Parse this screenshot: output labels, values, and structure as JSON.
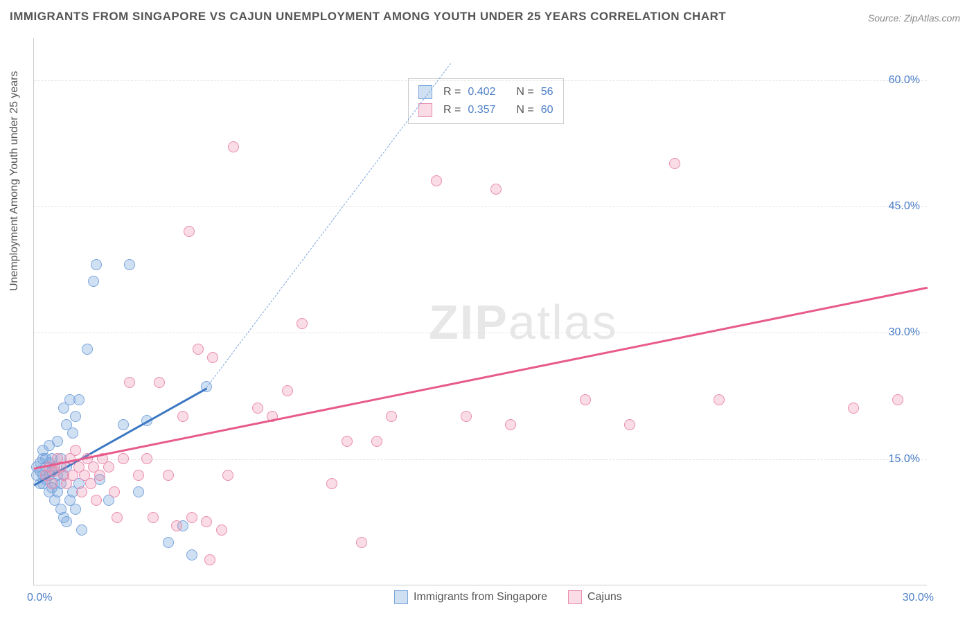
{
  "title": "IMMIGRANTS FROM SINGAPORE VS CAJUN UNEMPLOYMENT AMONG YOUTH UNDER 25 YEARS CORRELATION CHART",
  "source": "Source: ZipAtlas.com",
  "ylabel": "Unemployment Among Youth under 25 years",
  "watermark_bold": "ZIP",
  "watermark_light": "atlas",
  "chart": {
    "type": "scatter",
    "xlim": [
      0,
      30
    ],
    "ylim": [
      0,
      65
    ],
    "xtick_labels": {
      "min": "0.0%",
      "max": "30.0%"
    },
    "ytick_lines": [
      {
        "val": 15,
        "label": "15.0%"
      },
      {
        "val": 30,
        "label": "30.0%"
      },
      {
        "val": 45,
        "label": "45.0%"
      },
      {
        "val": 60,
        "label": "60.0%"
      }
    ],
    "background_color": "#ffffff",
    "grid_color": "#e3e3e3",
    "series": [
      {
        "name": "Immigrants from Singapore",
        "fill": "rgba(120,165,220,0.35)",
        "stroke": "#7aa5dc",
        "trend_color": "#3b77c2",
        "r_label": "R =",
        "r_val": "0.402",
        "n_label": "N =",
        "n_val": "56",
        "trend": {
          "x1": 0,
          "y1": 12,
          "x2": 5.8,
          "y2": 23.5,
          "dash_to_x": 14.0,
          "dash_to_y": 62
        },
        "points": [
          [
            0.1,
            13.0
          ],
          [
            0.1,
            14.0
          ],
          [
            0.2,
            12.0
          ],
          [
            0.2,
            13.5
          ],
          [
            0.2,
            14.5
          ],
          [
            0.3,
            12.0
          ],
          [
            0.3,
            13.0
          ],
          [
            0.3,
            15.0
          ],
          [
            0.3,
            16.0
          ],
          [
            0.4,
            12.5
          ],
          [
            0.4,
            14.0
          ],
          [
            0.4,
            15.0
          ],
          [
            0.5,
            11.0
          ],
          [
            0.5,
            13.0
          ],
          [
            0.5,
            14.5
          ],
          [
            0.5,
            16.5
          ],
          [
            0.6,
            11.5
          ],
          [
            0.6,
            13.5
          ],
          [
            0.6,
            15.0
          ],
          [
            0.7,
            10.0
          ],
          [
            0.7,
            12.0
          ],
          [
            0.7,
            14.0
          ],
          [
            0.8,
            11.0
          ],
          [
            0.8,
            13.0
          ],
          [
            0.8,
            17.0
          ],
          [
            0.9,
            9.0
          ],
          [
            0.9,
            12.0
          ],
          [
            0.9,
            15.0
          ],
          [
            1.0,
            8.0
          ],
          [
            1.0,
            13.0
          ],
          [
            1.0,
            21.0
          ],
          [
            1.1,
            7.5
          ],
          [
            1.1,
            14.0
          ],
          [
            1.1,
            19.0
          ],
          [
            1.2,
            10.0
          ],
          [
            1.2,
            22.0
          ],
          [
            1.3,
            11.0
          ],
          [
            1.3,
            18.0
          ],
          [
            1.4,
            9.0
          ],
          [
            1.4,
            20.0
          ],
          [
            1.5,
            12.0
          ],
          [
            1.5,
            22.0
          ],
          [
            1.6,
            6.5
          ],
          [
            1.8,
            28.0
          ],
          [
            2.0,
            36.0
          ],
          [
            2.1,
            38.0
          ],
          [
            2.2,
            12.5
          ],
          [
            2.5,
            10.0
          ],
          [
            3.0,
            19.0
          ],
          [
            3.2,
            38.0
          ],
          [
            3.5,
            11.0
          ],
          [
            3.8,
            19.5
          ],
          [
            4.5,
            5.0
          ],
          [
            5.0,
            7.0
          ],
          [
            5.3,
            3.5
          ],
          [
            5.8,
            23.5
          ]
        ]
      },
      {
        "name": "Cajuns",
        "fill": "rgba(235,140,170,0.30)",
        "stroke": "#ea8cb0",
        "trend_color": "#e75a8b",
        "r_label": "R =",
        "r_val": "0.357",
        "n_label": "N =",
        "n_val": "60",
        "trend": {
          "x1": 0,
          "y1": 14,
          "x2": 30,
          "y2": 35.5,
          "dash_to_x": 30,
          "dash_to_y": 35.5
        },
        "points": [
          [
            0.4,
            13.0
          ],
          [
            0.5,
            14.0
          ],
          [
            0.6,
            12.0
          ],
          [
            0.7,
            13.5
          ],
          [
            0.8,
            15.0
          ],
          [
            0.9,
            14.0
          ],
          [
            1.0,
            13.0
          ],
          [
            1.1,
            12.0
          ],
          [
            1.2,
            15.0
          ],
          [
            1.3,
            13.0
          ],
          [
            1.4,
            16.0
          ],
          [
            1.5,
            14.0
          ],
          [
            1.6,
            11.0
          ],
          [
            1.7,
            13.0
          ],
          [
            1.8,
            15.0
          ],
          [
            1.9,
            12.0
          ],
          [
            2.0,
            14.0
          ],
          [
            2.1,
            10.0
          ],
          [
            2.2,
            13.0
          ],
          [
            2.3,
            15.0
          ],
          [
            2.5,
            14.0
          ],
          [
            2.7,
            11.0
          ],
          [
            2.8,
            8.0
          ],
          [
            3.0,
            15.0
          ],
          [
            3.2,
            24.0
          ],
          [
            3.5,
            13.0
          ],
          [
            3.8,
            15.0
          ],
          [
            4.0,
            8.0
          ],
          [
            4.2,
            24.0
          ],
          [
            4.5,
            13.0
          ],
          [
            4.8,
            7.0
          ],
          [
            5.0,
            20.0
          ],
          [
            5.2,
            42.0
          ],
          [
            5.3,
            8.0
          ],
          [
            5.5,
            28.0
          ],
          [
            5.8,
            7.5
          ],
          [
            5.9,
            3.0
          ],
          [
            6.0,
            27.0
          ],
          [
            6.3,
            6.5
          ],
          [
            6.5,
            13.0
          ],
          [
            6.7,
            52.0
          ],
          [
            7.5,
            21.0
          ],
          [
            8.0,
            20.0
          ],
          [
            8.5,
            23.0
          ],
          [
            9.0,
            31.0
          ],
          [
            10.0,
            12.0
          ],
          [
            10.5,
            17.0
          ],
          [
            11.0,
            5.0
          ],
          [
            11.5,
            17.0
          ],
          [
            12.0,
            20.0
          ],
          [
            13.5,
            48.0
          ],
          [
            14.5,
            20.0
          ],
          [
            15.5,
            47.0
          ],
          [
            16.0,
            19.0
          ],
          [
            18.5,
            22.0
          ],
          [
            20.0,
            19.0
          ],
          [
            21.5,
            50.0
          ],
          [
            23.0,
            22.0
          ],
          [
            27.5,
            21.0
          ],
          [
            29.0,
            22.0
          ]
        ]
      }
    ]
  }
}
